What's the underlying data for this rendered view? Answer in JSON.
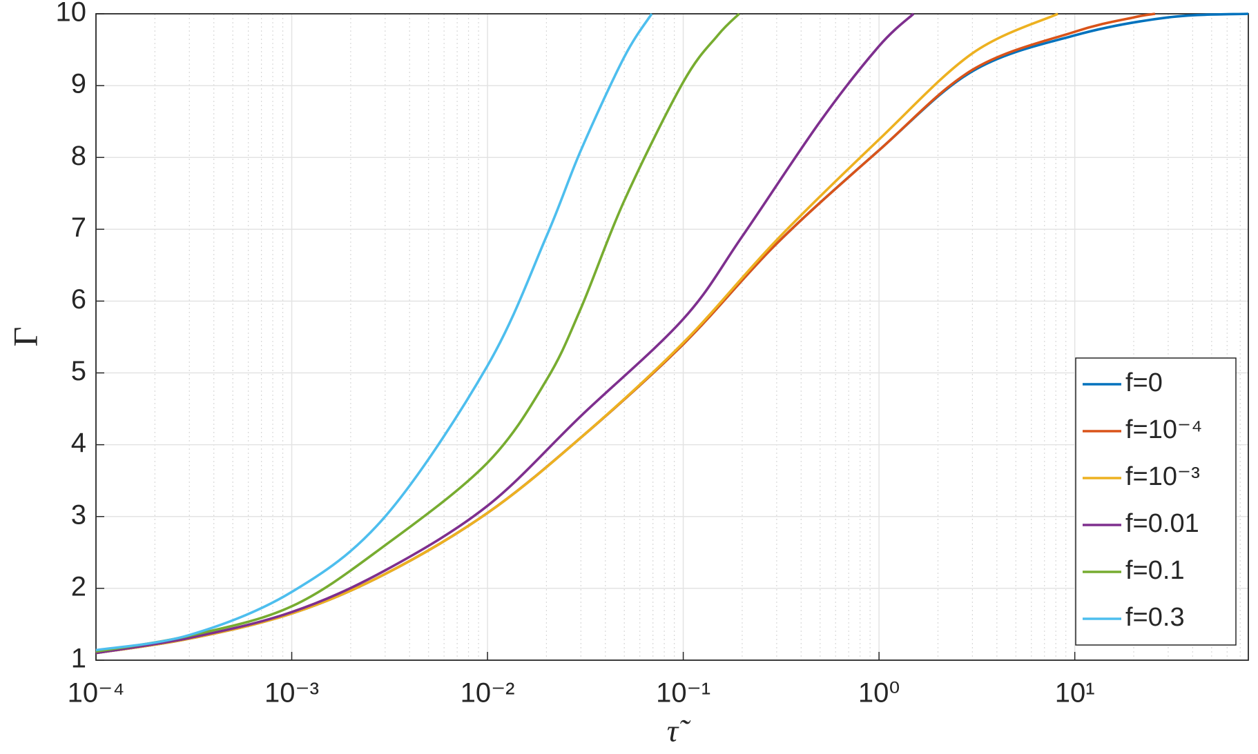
{
  "chart_data": {
    "type": "line",
    "x_label": "τ̃",
    "y_label": "Γ",
    "xscale": "log",
    "xlim": [
      0.0001,
      77
    ],
    "ylim": [
      1,
      10
    ],
    "xticks": [
      {
        "value": 0.0001,
        "label": "10⁻⁴"
      },
      {
        "value": 0.001,
        "label": "10⁻³"
      },
      {
        "value": 0.01,
        "label": "10⁻²"
      },
      {
        "value": 0.1,
        "label": "10⁻¹"
      },
      {
        "value": 1,
        "label": "10⁰"
      },
      {
        "value": 10,
        "label": "10¹"
      }
    ],
    "yticks": [
      1,
      2,
      3,
      4,
      5,
      6,
      7,
      8,
      9,
      10
    ],
    "grid": true,
    "minor_grid": true,
    "legend": "lower right",
    "series": [
      {
        "name": "f=0",
        "color": "#0072bd",
        "x": [
          0.0001,
          0.0003,
          0.001,
          0.003,
          0.01,
          0.03,
          0.1,
          0.3,
          1,
          3,
          10,
          30,
          77
        ],
        "values": [
          1.1,
          1.3,
          1.65,
          2.2,
          3.05,
          4.1,
          5.4,
          6.8,
          8.1,
          9.2,
          9.7,
          9.95,
          10
        ]
      },
      {
        "name": "f=10⁻⁴",
        "color": "#d95319",
        "x": [
          0.0001,
          0.0003,
          0.001,
          0.003,
          0.01,
          0.03,
          0.1,
          0.3,
          1,
          3,
          10,
          20,
          25.7
        ],
        "values": [
          1.1,
          1.3,
          1.65,
          2.2,
          3.05,
          4.1,
          5.4,
          6.8,
          8.1,
          9.22,
          9.75,
          9.95,
          10
        ]
      },
      {
        "name": "f=10⁻³",
        "color": "#edb120",
        "x": [
          0.0001,
          0.0003,
          0.001,
          0.003,
          0.01,
          0.03,
          0.1,
          0.3,
          1,
          3,
          8.2
        ],
        "values": [
          1.1,
          1.3,
          1.65,
          2.2,
          3.05,
          4.1,
          5.42,
          6.85,
          8.25,
          9.45,
          10
        ]
      },
      {
        "name": "f=0.01",
        "color": "#7e2f8e",
        "x": [
          0.0001,
          0.0003,
          0.001,
          0.003,
          0.01,
          0.03,
          0.1,
          0.2,
          0.5,
          1,
          1.5
        ],
        "values": [
          1.1,
          1.31,
          1.67,
          2.25,
          3.15,
          4.4,
          5.75,
          6.9,
          8.5,
          9.55,
          10
        ]
      },
      {
        "name": "f=0.1",
        "color": "#77ac30",
        "x": [
          0.0001,
          0.0003,
          0.001,
          0.003,
          0.01,
          0.02,
          0.03,
          0.05,
          0.1,
          0.15,
          0.193
        ],
        "values": [
          1.12,
          1.34,
          1.75,
          2.6,
          3.75,
          4.9,
          5.9,
          7.4,
          9.05,
          9.7,
          10
        ]
      },
      {
        "name": "f=0.3",
        "color": "#4dbeee",
        "x": [
          0.0001,
          0.0003,
          0.001,
          0.003,
          0.01,
          0.02,
          0.03,
          0.05,
          0.069
        ],
        "values": [
          1.14,
          1.35,
          1.95,
          3.0,
          5.1,
          6.9,
          8.1,
          9.4,
          10
        ]
      }
    ]
  }
}
